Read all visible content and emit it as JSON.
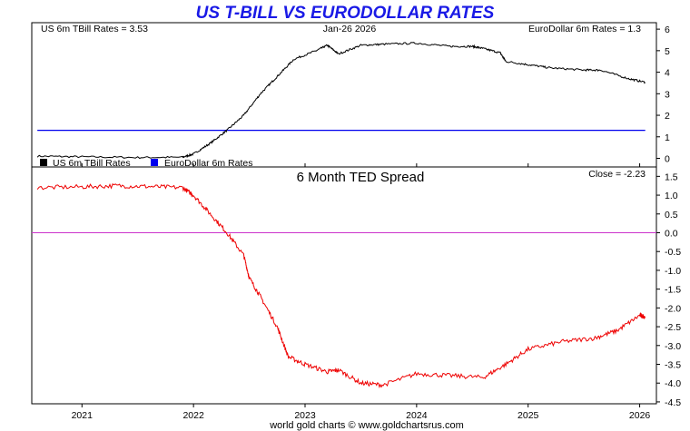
{
  "title": "US T-BILL VS EURODOLLAR RATES",
  "footer": "world gold charts © www.goldchartsrus.com",
  "colors": {
    "title": "#1a1ae6",
    "tbill": "#000000",
    "eurodollar": "#0000ee",
    "ted": "#ee0000",
    "zero_line": "#cc33cc"
  },
  "chart_data": [
    {
      "type": "line",
      "title": "US T-BILL VS EURODOLLAR RATES",
      "header_left": "US 6m TBill Rates = 3.53",
      "header_center": "Jan-26  2026",
      "header_right": "EuroDollar 6m Rates = 1.3",
      "legend": [
        "US 6m TBill Rates",
        "EuroDollar 6m Rates"
      ],
      "ylim": [
        -0.4,
        6.3
      ],
      "yticks": [
        "0",
        "1",
        "2",
        "3",
        "4",
        "5",
        "6"
      ],
      "x": [
        2020.6,
        2021.0,
        2021.5,
        2021.9,
        2022.0,
        2022.15,
        2022.3,
        2022.45,
        2022.6,
        2022.75,
        2022.9,
        2023.1,
        2023.2,
        2023.3,
        2023.5,
        2023.7,
        2024.0,
        2024.3,
        2024.5,
        2024.6,
        2024.75,
        2024.8,
        2025.0,
        2025.2,
        2025.5,
        2025.65,
        2025.9,
        2026.05
      ],
      "series": [
        {
          "name": "US 6m TBill Rates",
          "values": [
            0.1,
            0.07,
            0.04,
            0.05,
            0.2,
            0.7,
            1.3,
            2.0,
            3.0,
            3.8,
            4.6,
            5.0,
            5.25,
            4.85,
            5.25,
            5.3,
            5.35,
            5.2,
            5.2,
            5.1,
            4.9,
            4.5,
            4.35,
            4.2,
            4.1,
            4.1,
            3.7,
            3.53
          ]
        },
        {
          "name": "EuroDollar 6m Rates",
          "values": [
            1.3,
            1.3,
            1.3,
            1.3,
            1.3,
            1.3,
            1.3,
            1.3,
            1.3,
            1.3,
            1.3,
            1.3,
            1.3,
            1.3,
            1.3,
            1.3,
            1.3,
            1.3,
            1.3,
            1.3,
            1.3,
            1.3,
            1.3,
            1.3,
            1.3,
            1.3,
            1.3,
            1.3
          ]
        }
      ]
    },
    {
      "type": "line",
      "title": "6 Month TED Spread",
      "header_right": "Close = -2.23",
      "ylim": [
        -4.55,
        1.75
      ],
      "yticks": [
        "1.5",
        "1.0",
        "0.5",
        "0.0",
        "-0.5",
        "-1.0",
        "-1.5",
        "-2.0",
        "-2.5",
        "-3.0",
        "-3.5",
        "-4.0",
        "-4.5"
      ],
      "zero_line": 0,
      "x": [
        2020.6,
        2021.0,
        2021.3,
        2021.6,
        2021.9,
        2022.0,
        2022.15,
        2022.3,
        2022.45,
        2022.5,
        2022.6,
        2022.75,
        2022.85,
        2023.0,
        2023.2,
        2023.3,
        2023.5,
        2023.7,
        2024.0,
        2024.3,
        2024.6,
        2024.8,
        2025.0,
        2025.3,
        2025.6,
        2025.8,
        2026.0,
        2026.05
      ],
      "series": [
        {
          "name": "6 Month TED Spread",
          "values": [
            1.2,
            1.22,
            1.25,
            1.23,
            1.2,
            1.0,
            0.5,
            0.0,
            -0.6,
            -1.2,
            -1.7,
            -2.5,
            -3.3,
            -3.5,
            -3.7,
            -3.65,
            -4.0,
            -4.05,
            -3.75,
            -3.8,
            -3.85,
            -3.5,
            -3.1,
            -2.9,
            -2.8,
            -2.6,
            -2.2,
            -2.23
          ]
        }
      ]
    }
  ],
  "x_axis": {
    "range": [
      2020.55,
      2026.15
    ],
    "tick_labels": [
      "2021",
      "2022",
      "2023",
      "2024",
      "2025",
      "2026"
    ],
    "tick_values": [
      2021,
      2022,
      2023,
      2024,
      2025,
      2026
    ]
  }
}
